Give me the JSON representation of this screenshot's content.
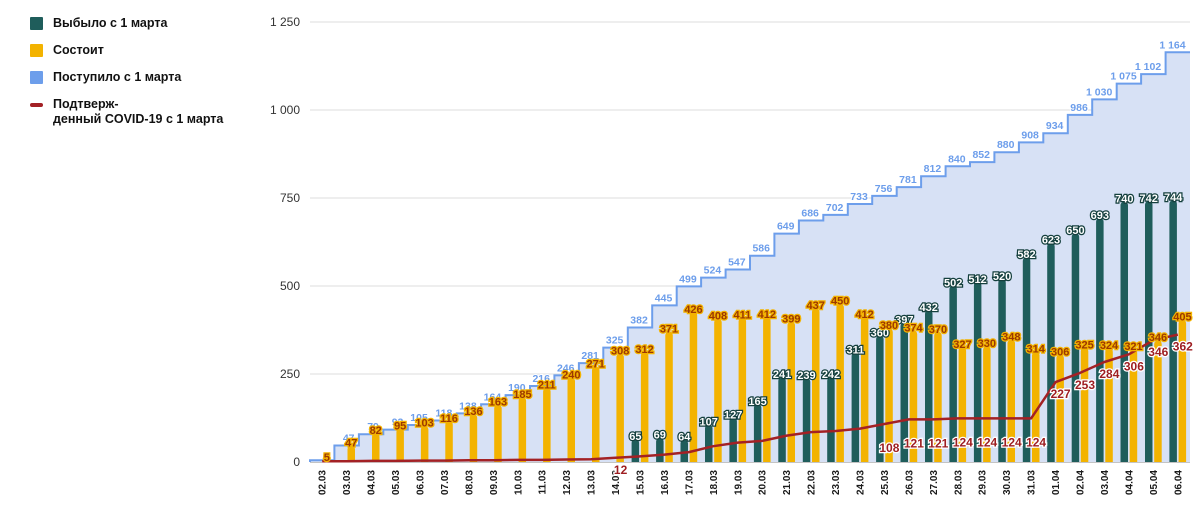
{
  "legend": {
    "items": [
      {
        "label": "Выбыло с 1 марта",
        "color": "#1f5d5b",
        "swatch": "square"
      },
      {
        "label": "Состоит",
        "color": "#f3b300",
        "swatch": "square"
      },
      {
        "label": "Поступило с 1 марта",
        "color": "#6d9eeb",
        "swatch": "square"
      },
      {
        "label": "Подтверж-денный COVID-19 с 1 марта",
        "lines": [
          "Подтверж-",
          "денный COVID-19 с 1 марта"
        ],
        "color": "#a32125",
        "swatch": "line"
      }
    ]
  },
  "chart_data": {
    "type": "combo",
    "categories": [
      "02.03",
      "03.03",
      "04.03",
      "05.03",
      "06.03",
      "07.03",
      "08.03",
      "09.03",
      "10.03",
      "11.03",
      "12.03",
      "13.03",
      "14.03",
      "15.03",
      "16.03",
      "17.03",
      "18.03",
      "19.03",
      "20.03",
      "21.03",
      "22.03",
      "23.03",
      "24.03",
      "25.03",
      "26.03",
      "27.03",
      "28.03",
      "29.03",
      "30.03",
      "31.03",
      "01.04",
      "02.04",
      "03.04",
      "04.04",
      "05.04",
      "06.04"
    ],
    "y_axis": {
      "max": 1250,
      "ticks": [
        0,
        250,
        500,
        750,
        1000,
        1250
      ],
      "tick_labels": [
        "0",
        "250",
        "500",
        "750",
        "1 000",
        "1 250"
      ]
    },
    "grid": true,
    "legend_position": "top-left",
    "series": [
      {
        "name": "Поступило с 1 марта",
        "type": "step-area",
        "color": "#6d9eeb",
        "fill": "#d7e1f5",
        "label_color": "#6d9eeb",
        "labels_from": 1,
        "values": [
          5,
          47,
          79,
          92,
          105,
          118,
          138,
          164,
          190,
          216,
          246,
          281,
          325,
          382,
          445,
          499,
          524,
          547,
          586,
          649,
          686,
          702,
          733,
          756,
          781,
          812,
          840,
          852,
          880,
          908,
          934,
          986,
          1030,
          1075,
          1102,
          1164
        ]
      },
      {
        "name": "Выбыло с 1 марта",
        "type": "bar",
        "slot": "left",
        "color": "#1f5d5b",
        "label_color": "#ffffff",
        "label_halo": "#143f3d",
        "values": [
          null,
          null,
          null,
          null,
          null,
          null,
          null,
          null,
          null,
          null,
          null,
          null,
          null,
          65,
          69,
          64,
          107,
          127,
          165,
          241,
          239,
          242,
          311,
          360,
          397,
          432,
          502,
          512,
          520,
          582,
          623,
          650,
          693,
          740,
          742,
          744
        ]
      },
      {
        "name": "Состоит",
        "type": "bar",
        "slot": "right",
        "color": "#f3b300",
        "label_color": "#9c3800",
        "label_halo": "#f3b300",
        "values": [
          5,
          47,
          82,
          95,
          103,
          116,
          136,
          163,
          185,
          211,
          240,
          271,
          308,
          312,
          371,
          426,
          408,
          411,
          412,
          399,
          437,
          450,
          412,
          380,
          374,
          370,
          327,
          330,
          348,
          314,
          306,
          325,
          324,
          321,
          346,
          405
        ]
      },
      {
        "name": "Подтвержденный COVID-19 с 1 марта",
        "type": "line",
        "color": "#a32125",
        "label_color": "#9e1e22",
        "label_indices": [
          12,
          23,
          24,
          25,
          26,
          27,
          28,
          29,
          30,
          31,
          32,
          33,
          34,
          35
        ],
        "values": [
          2,
          2,
          3,
          3,
          4,
          4,
          5,
          5,
          6,
          6,
          7,
          8,
          12,
          16,
          21,
          28,
          45,
          55,
          60,
          75,
          85,
          88,
          95,
          108,
          121,
          121,
          124,
          124,
          124,
          124,
          227,
          253,
          284,
          306,
          346,
          362
        ]
      }
    ]
  }
}
